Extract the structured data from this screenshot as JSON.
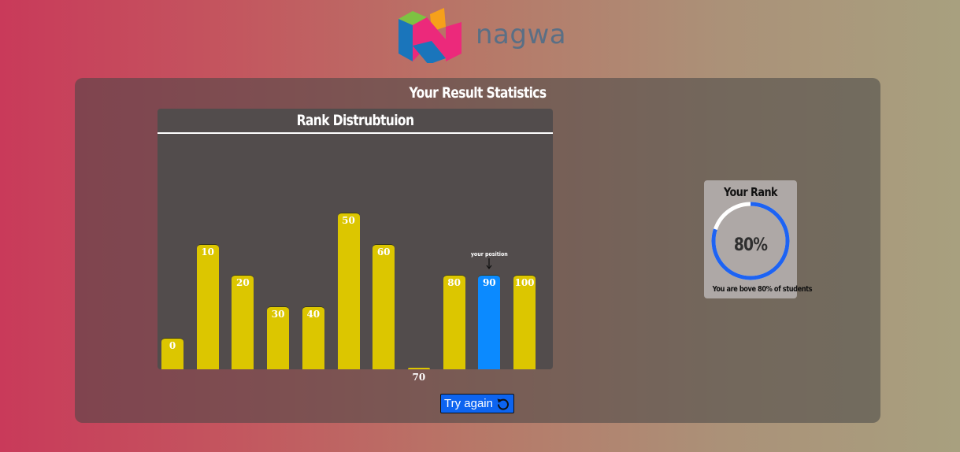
{
  "brand": {
    "name": "nagwa"
  },
  "panel": {
    "title": "Your Result Statistics"
  },
  "chart": {
    "title": "Rank Distrubtuion",
    "position_label": "your position"
  },
  "chart_data": {
    "type": "bar",
    "title": "Rank Distrubtuion",
    "categories": [
      "0",
      "10",
      "20",
      "30",
      "40",
      "50",
      "60",
      "70",
      "80",
      "90",
      "100"
    ],
    "values": [
      5,
      20,
      15,
      10,
      10,
      25,
      20,
      0,
      15,
      15,
      15
    ],
    "highlight_category": "90",
    "colors": {
      "default": "#dcc600",
      "highlight": "#0b8aff"
    },
    "ylim": [
      0,
      37.5
    ],
    "grid": false
  },
  "rank": {
    "title": "Your Rank",
    "value_text": "80%",
    "percent": 80,
    "subtitle": "You are bove 80% of students",
    "colors": {
      "progress": "#1d63f3",
      "track": "#ffffff"
    }
  },
  "actions": {
    "try_again_label": "Try again",
    "try_again_icon": "refresh-icon"
  }
}
